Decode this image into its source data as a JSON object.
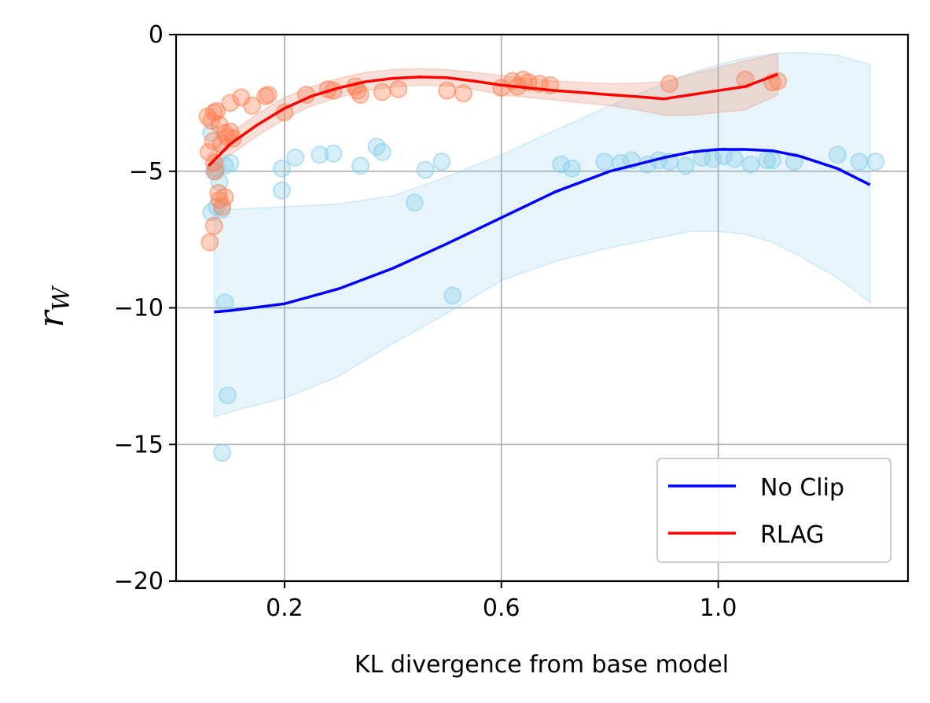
{
  "chart_data": {
    "type": "line",
    "title": "",
    "xlabel": "KL divergence from base model",
    "ylabel": "r",
    "ylabel_subscript": "W",
    "xlim": [
      0.0,
      1.35
    ],
    "ylim": [
      -20,
      0
    ],
    "xticks": [
      0.2,
      0.6,
      1.0
    ],
    "xtick_labels": [
      "0.2",
      "0.6",
      "1.0"
    ],
    "yticks": [
      0,
      -5,
      -10,
      -15,
      -20
    ],
    "ytick_labels": [
      "0",
      "−5",
      "−10",
      "−15",
      "−20"
    ],
    "grid": true,
    "legend_position": "bottom-right",
    "series": [
      {
        "name": "No Clip",
        "color": "#0000ff",
        "band_color": "#87ceeb",
        "x": [
          0.07,
          0.1,
          0.2,
          0.3,
          0.4,
          0.5,
          0.6,
          0.7,
          0.8,
          0.9,
          0.95,
          1.0,
          1.05,
          1.1,
          1.15,
          1.22,
          1.28
        ],
        "y": [
          -10.15,
          -10.1,
          -9.85,
          -9.3,
          -8.55,
          -7.65,
          -6.7,
          -5.75,
          -5.0,
          -4.5,
          -4.3,
          -4.2,
          -4.2,
          -4.25,
          -4.45,
          -4.9,
          -5.5
        ],
        "band_upper": [
          -6.5,
          -6.4,
          -6.3,
          -6.2,
          -5.9,
          -5.2,
          -4.4,
          -3.5,
          -2.6,
          -1.8,
          -1.4,
          -1.1,
          -0.85,
          -0.7,
          -0.65,
          -0.75,
          -1.1
        ],
        "band_lower": [
          -14.0,
          -13.8,
          -13.3,
          -12.5,
          -11.3,
          -10.2,
          -9.0,
          -8.3,
          -7.8,
          -7.4,
          -7.2,
          -7.2,
          -7.3,
          -7.6,
          -8.1,
          -8.9,
          -9.8
        ],
        "points": [
          [
            0.065,
            -3.6
          ],
          [
            0.07,
            -5.0
          ],
          [
            0.075,
            -4.9
          ],
          [
            0.08,
            -5.4
          ],
          [
            0.09,
            -4.8
          ],
          [
            0.1,
            -4.7
          ],
          [
            0.065,
            -6.5
          ],
          [
            0.075,
            -6.3
          ],
          [
            0.085,
            -6.4
          ],
          [
            0.09,
            -9.8
          ],
          [
            0.095,
            -13.2
          ],
          [
            0.085,
            -15.3
          ],
          [
            0.195,
            -4.9
          ],
          [
            0.195,
            -5.7
          ],
          [
            0.22,
            -4.5
          ],
          [
            0.265,
            -4.4
          ],
          [
            0.29,
            -4.35
          ],
          [
            0.34,
            -4.8
          ],
          [
            0.37,
            -4.1
          ],
          [
            0.38,
            -4.3
          ],
          [
            0.44,
            -6.15
          ],
          [
            0.46,
            -4.95
          ],
          [
            0.49,
            -4.65
          ],
          [
            0.51,
            -9.55
          ],
          [
            0.71,
            -4.75
          ],
          [
            0.73,
            -4.9
          ],
          [
            0.79,
            -4.65
          ],
          [
            0.82,
            -4.7
          ],
          [
            0.84,
            -4.6
          ],
          [
            0.87,
            -4.75
          ],
          [
            0.89,
            -4.6
          ],
          [
            0.91,
            -4.65
          ],
          [
            0.94,
            -4.8
          ],
          [
            0.97,
            -4.5
          ],
          [
            0.99,
            -4.55
          ],
          [
            1.01,
            -4.45
          ],
          [
            1.03,
            -4.55
          ],
          [
            1.06,
            -4.75
          ],
          [
            1.09,
            -4.6
          ],
          [
            1.1,
            -4.6
          ],
          [
            1.14,
            -4.65
          ],
          [
            1.22,
            -4.4
          ],
          [
            1.26,
            -4.65
          ],
          [
            1.29,
            -4.65
          ]
        ]
      },
      {
        "name": "RLAG",
        "color": "#ff0000",
        "band_color": "#e8957a",
        "x": [
          0.06,
          0.1,
          0.15,
          0.2,
          0.25,
          0.3,
          0.35,
          0.4,
          0.45,
          0.5,
          0.55,
          0.6,
          0.65,
          0.7,
          0.75,
          0.8,
          0.85,
          0.9,
          0.95,
          1.0,
          1.05,
          1.11
        ],
        "y": [
          -4.8,
          -4.0,
          -3.3,
          -2.7,
          -2.25,
          -1.95,
          -1.72,
          -1.6,
          -1.55,
          -1.58,
          -1.7,
          -1.85,
          -1.95,
          -2.05,
          -2.12,
          -2.2,
          -2.27,
          -2.35,
          -2.2,
          -2.05,
          -1.9,
          -1.45
        ],
        "band_upper": [
          -4.4,
          -3.6,
          -2.9,
          -2.3,
          -1.9,
          -1.6,
          -1.38,
          -1.28,
          -1.25,
          -1.28,
          -1.38,
          -1.5,
          -1.6,
          -1.7,
          -1.75,
          -1.8,
          -1.78,
          -1.72,
          -1.45,
          -1.2,
          -0.95,
          -0.7
        ],
        "band_lower": [
          -5.2,
          -4.4,
          -3.7,
          -3.1,
          -2.6,
          -2.3,
          -2.06,
          -1.92,
          -1.85,
          -1.88,
          -2.0,
          -2.2,
          -2.3,
          -2.4,
          -2.5,
          -2.6,
          -2.75,
          -2.95,
          -2.95,
          -2.85,
          -2.75,
          -2.2
        ],
        "points": [
          [
            0.058,
            -3.0
          ],
          [
            0.06,
            -4.3
          ],
          [
            0.065,
            -3.15
          ],
          [
            0.068,
            -3.9
          ],
          [
            0.07,
            -2.85
          ],
          [
            0.075,
            -2.8
          ],
          [
            0.08,
            -3.3
          ],
          [
            0.083,
            -4.0
          ],
          [
            0.09,
            -3.6
          ],
          [
            0.095,
            -3.75
          ],
          [
            0.1,
            -3.55
          ],
          [
            0.105,
            -3.8
          ],
          [
            0.07,
            -4.7
          ],
          [
            0.072,
            -5.0
          ],
          [
            0.078,
            -5.8
          ],
          [
            0.08,
            -6.05
          ],
          [
            0.09,
            -5.95
          ],
          [
            0.085,
            -6.3
          ],
          [
            0.07,
            -7.0
          ],
          [
            0.062,
            -7.6
          ],
          [
            0.1,
            -2.5
          ],
          [
            0.12,
            -2.3
          ],
          [
            0.14,
            -2.6
          ],
          [
            0.165,
            -2.25
          ],
          [
            0.17,
            -2.2
          ],
          [
            0.2,
            -2.85
          ],
          [
            0.24,
            -2.2
          ],
          [
            0.28,
            -2.0
          ],
          [
            0.29,
            -2.05
          ],
          [
            0.33,
            -1.9
          ],
          [
            0.335,
            -2.05
          ],
          [
            0.34,
            -2.2
          ],
          [
            0.38,
            -2.1
          ],
          [
            0.41,
            -2.0
          ],
          [
            0.5,
            -2.05
          ],
          [
            0.53,
            -2.15
          ],
          [
            0.6,
            -1.95
          ],
          [
            0.62,
            -1.7
          ],
          [
            0.63,
            -1.9
          ],
          [
            0.64,
            -1.65
          ],
          [
            0.65,
            -1.75
          ],
          [
            0.67,
            -1.8
          ],
          [
            0.69,
            -1.85
          ],
          [
            0.91,
            -1.8
          ],
          [
            1.05,
            -1.65
          ],
          [
            1.1,
            -1.75
          ],
          [
            1.11,
            -1.7
          ]
        ]
      }
    ]
  }
}
